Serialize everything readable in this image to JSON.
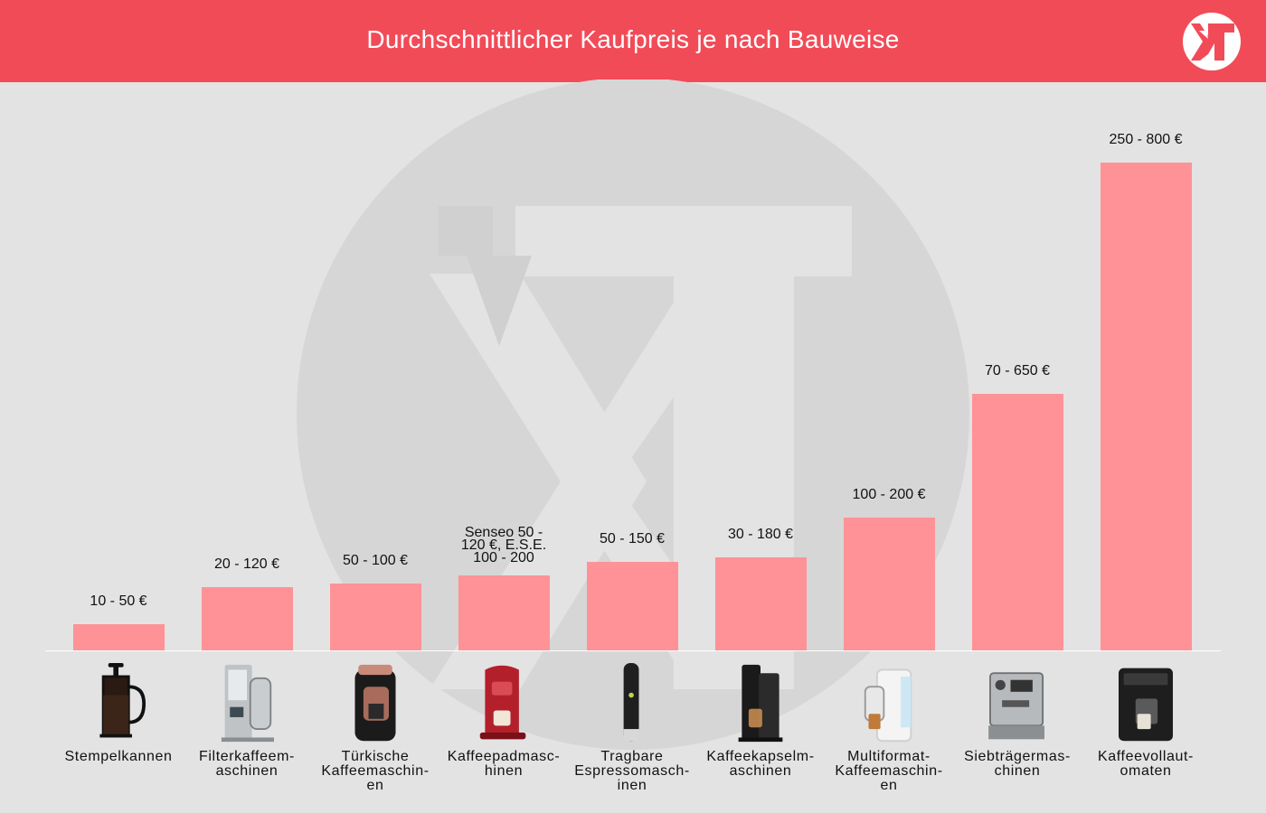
{
  "header": {
    "title": "Durchschnittlicher Kaufpreis je nach Bauweise"
  },
  "colors": {
    "header": "#f24b58",
    "bar": "#fe9297",
    "background": "#e3e3e3"
  },
  "chart_data": {
    "type": "bar",
    "title": "Durchschnittlicher Kaufpreis je nach Bauweise",
    "xlabel": "",
    "ylabel": "",
    "grid": false,
    "categories": [
      "Stempelkannen",
      "Filterkaffeem-\naschinen",
      "Türkische\nKaffeemaschin-\nen",
      "Kaffeepadmasc-\nhinen",
      "Tragbare\nEspressomasch-\ninen",
      "Kaffeekapselm-\naschinen",
      "Multiformat-\nKaffeemaschin-\nen",
      "Siebträgermas-\nchinen",
      "Kaffeevollaut-\nomaten"
    ],
    "value_labels": [
      "10 - 50 €",
      "20 - 120 €",
      "50 - 100 €",
      "Senseo 50 -\n120 €, E.S.E.\n100 - 200",
      "50 - 150 €",
      "30 - 180 €",
      "100 - 200 €",
      "70 - 650 €",
      "250 - 800 €"
    ],
    "values": [
      50,
      120,
      100,
      150,
      150,
      180,
      200,
      650,
      800
    ],
    "ylim": [
      0,
      800
    ],
    "product_icons": [
      "french-press-icon",
      "filter-coffee-machine-icon",
      "turkish-coffee-machine-icon",
      "pad-machine-icon",
      "portable-espresso-icon",
      "capsule-machine-icon",
      "multiformat-machine-icon",
      "portafilter-machine-icon",
      "fully-automatic-machine-icon"
    ]
  }
}
